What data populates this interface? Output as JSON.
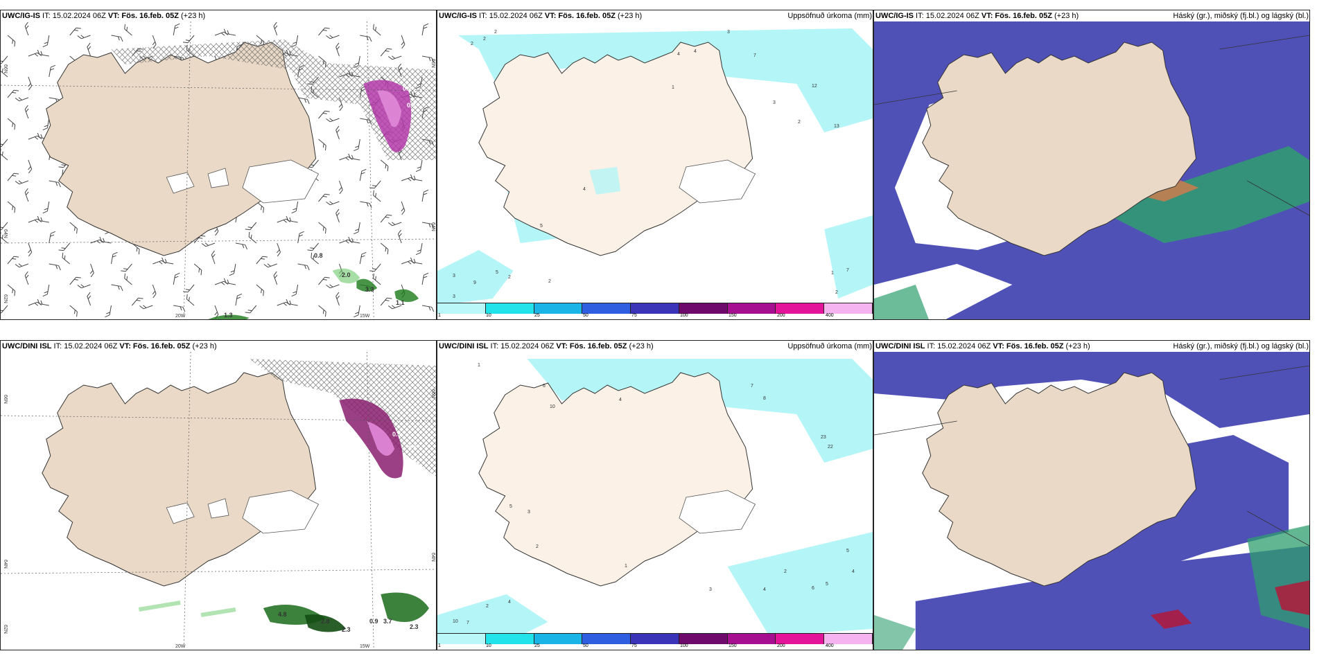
{
  "colors": {
    "land": "#e9d9c6",
    "land_light": "#fbf1e6",
    "precip_light": "#b4f5f7",
    "cloud_high": "#2e9e6e",
    "cloud_mid": "#5051b7",
    "cloud_low": "#ffffff"
  },
  "legend": {
    "values": [
      "1",
      "10",
      "25",
      "50",
      "75",
      "100",
      "150",
      "200",
      "400"
    ],
    "colors": [
      "#b9f7f8",
      "#23e3ea",
      "#1ab4e6",
      "#2f5fe0",
      "#3b34b8",
      "#6e0a6b",
      "#a60f8f",
      "#e3149a",
      "#f5b3f0"
    ]
  },
  "panels": [
    {
      "model": "UWC/IG-IS",
      "it": " IT: 15.02.2024 06Z ",
      "vt_label": "VT: Fös. 16.feb. 05Z",
      "lead": " (+23 h)",
      "field": "",
      "grid_labels": [
        "66N",
        "64N",
        "62N",
        "20W",
        "15W",
        "66N",
        "64N"
      ],
      "values": [
        "0.2",
        "0.3",
        "0.8",
        "2.0",
        "3.3",
        "1.1",
        "1.3"
      ]
    },
    {
      "model": "UWC/IG-IS",
      "it": " IT: 15.02.2024 06Z ",
      "vt_label": "VT: Fös. 16.feb. 05Z",
      "lead": " (+23 h)",
      "field": "Uppsöfnuð úrkoma (mm)",
      "values": [
        "2",
        "2",
        "2",
        "3",
        "7",
        "4",
        "4",
        "1",
        "12",
        "13",
        "3",
        "2",
        "4",
        "5",
        "9",
        "5",
        "2",
        "3",
        "3",
        "2",
        "1",
        "7",
        "2"
      ]
    },
    {
      "model": "UWC/IG-IS",
      "it": " IT: 15.02.2024 06Z ",
      "vt_label": "VT: Fös. 16.feb. 05Z",
      "lead": " (+23 h)",
      "field": "Háský (gr.), miðský (fj.bl.) og lágský (bl.)"
    },
    {
      "model": "UWC/DINI ISL",
      "it": " IT: 15.02.2024 06Z ",
      "vt_label": "VT: Fös. 16.feb. 05Z",
      "lead": " (+23 h)",
      "field": "",
      "grid_labels": [
        "66N",
        "64N",
        "62N",
        "20W",
        "15W",
        "66N",
        "64N"
      ],
      "values": [
        "0.5",
        "0.5",
        "4.8",
        "2.8",
        "2.3",
        "0.9",
        "3.7",
        "2.3"
      ]
    },
    {
      "model": "UWC/DINI ISL",
      "it": " IT: 15.02.2024 06Z ",
      "vt_label": "VT: Fös. 16.feb. 05Z",
      "lead": " (+23 h)",
      "field": "Uppsöfnuð úrkoma (mm)",
      "values": [
        "1",
        "6",
        "10",
        "4",
        "7",
        "8",
        "23",
        "22",
        "2",
        "5",
        "3",
        "2",
        "4",
        "10",
        "7",
        "3",
        "4",
        "5",
        "6",
        "2",
        "1",
        "5",
        "4"
      ]
    },
    {
      "model": "UWC/DINI ISL",
      "it": " IT: 15.02.2024 06Z ",
      "vt_label": "VT: Fös. 16.feb. 05Z",
      "lead": " (+23 h)",
      "field": "Háský (gr.), miðský (fj.bl.) og lágský (bl.)"
    }
  ]
}
